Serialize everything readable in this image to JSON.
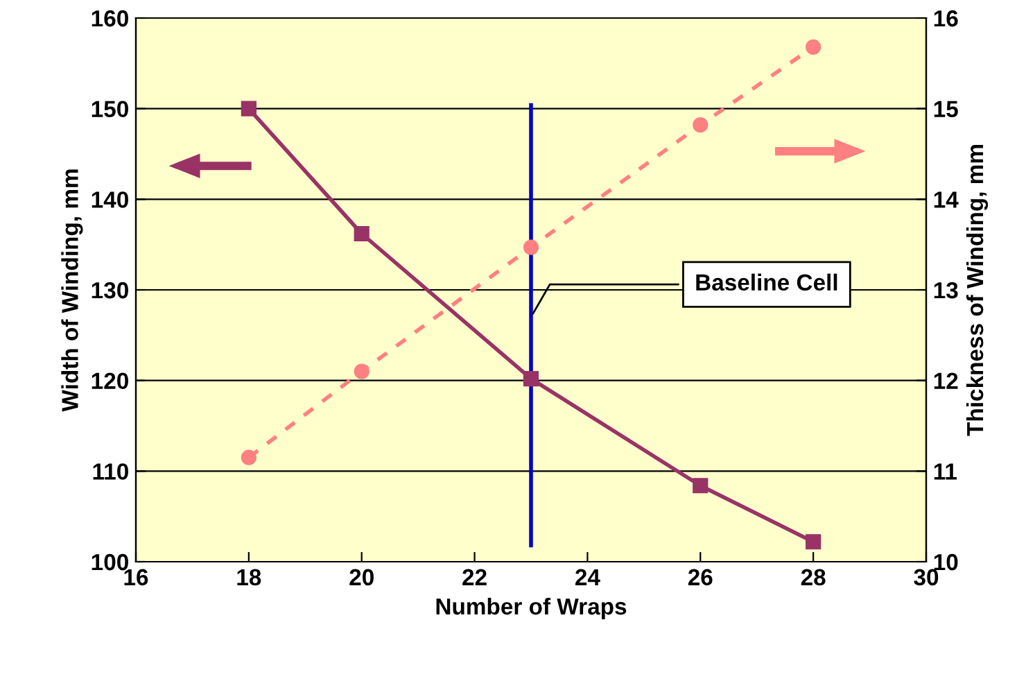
{
  "chart_data": {
    "type": "line",
    "xlabel": "Number of Wraps",
    "ylabel": "Width of Winding, mm",
    "y2label": "Thickness of Winding, mm",
    "x": [
      18,
      20,
      23,
      26,
      28
    ],
    "series": [
      {
        "color": "#993366",
        "values": [
          150,
          136.2,
          120.2,
          108.4,
          102.2
        ],
        "marker": "square",
        "line_style": "solid"
      },
      {
        "color": "#ff8080",
        "values": [
          11.15,
          12.1,
          13.47,
          14.82,
          15.68
        ],
        "axis": "y2",
        "marker": "circle",
        "line_style": "dashed"
      }
    ],
    "xlim": [
      16,
      30
    ],
    "xticks": [
      16,
      18,
      20,
      22,
      24,
      26,
      28,
      30
    ],
    "ylim": [
      100,
      160
    ],
    "yticks": [
      100,
      110,
      120,
      130,
      140,
      150,
      160
    ],
    "y2lim": [
      10,
      16
    ],
    "y2ticks": [
      10,
      11,
      12,
      13,
      14,
      15,
      16
    ],
    "grid": "y",
    "legend": false,
    "ref_lines": [
      {
        "axis": "x",
        "value": 23,
        "label": "Baseline Cell",
        "color": "#0000cc",
        "line_style": "solid"
      }
    ]
  }
}
